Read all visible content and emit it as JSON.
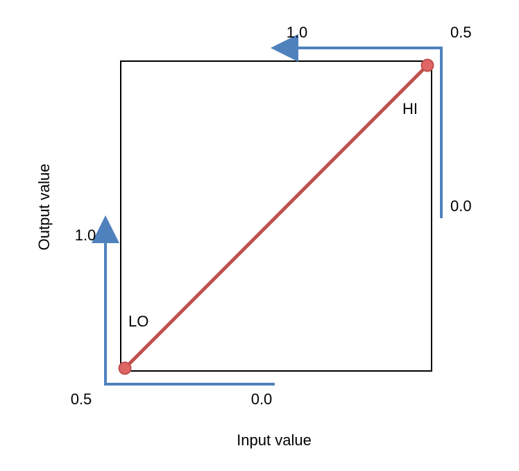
{
  "labels": {
    "x_axis_title": "Input value",
    "y_axis_title": "Output value",
    "lo": "LO",
    "hi": "HI",
    "bottom_arrow_start": "0.0",
    "bottom_arrow_end": "0.5",
    "left_arrow_top": "1.0",
    "right_arrow_bottom": "0.0",
    "top_arrow_corner": "0.5",
    "top_arrow_end": "1.0"
  },
  "colors": {
    "box_stroke": "#000000",
    "arrow": "#4f81bd",
    "mapping_line": "#c0504d",
    "point_fill": "#e06666",
    "point_stroke": "#c0504d",
    "text": "#000000"
  }
}
